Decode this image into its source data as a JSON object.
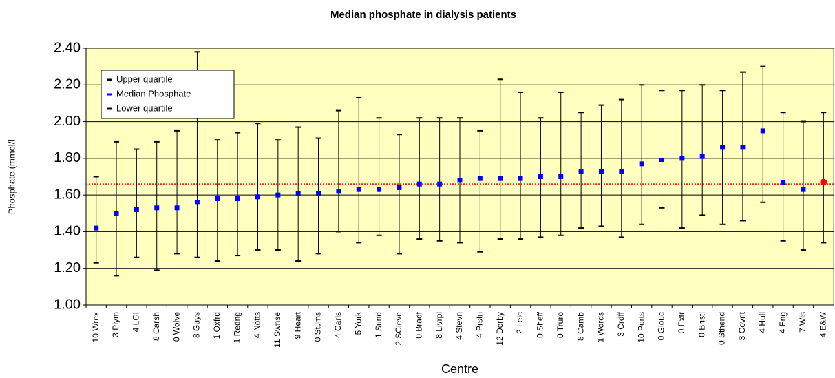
{
  "chart_data": {
    "type": "errorbar",
    "title": "Median phosphate in dialysis patients",
    "x_label": "Centre",
    "y_label": "Phosphate (mmol/l",
    "categories": [
      "10 Wrex",
      "3 Plym",
      "4 LGI",
      "8 Carsh",
      "0 Wolve",
      "8 Guys",
      "1 Oxfrd",
      "1 Redng",
      "4 Notts",
      "11 Swnse",
      "9 Heart",
      "0 StJms",
      "4 Carls",
      "5 York",
      "1 Sund",
      "2 SCleve",
      "0 Bradf",
      "8 Livrpl",
      "4 Stevn",
      "4 Prstn",
      "12 Derby",
      "2 Leic",
      "0 Sheff",
      "0 Truro",
      "8 Camb",
      "1 Words",
      "3 Crdff",
      "10 Ports",
      "0 Glouc",
      "0 Extr",
      "0 Bristl",
      "0 Sthend",
      "3 Covnt",
      "4 Hull",
      "4 Eng",
      "7 Wls",
      "4 E&W"
    ],
    "series": [
      {
        "name": "Upper quartile",
        "color": "#000000",
        "values": [
          1.7,
          1.89,
          1.85,
          1.89,
          1.95,
          2.38,
          1.9,
          1.94,
          1.99,
          1.9,
          1.97,
          1.91,
          2.06,
          2.13,
          2.02,
          1.93,
          2.02,
          2.02,
          2.02,
          1.95,
          2.23,
          2.16,
          2.02,
          2.16,
          2.05,
          2.09,
          2.12,
          2.2,
          2.17,
          2.17,
          2.2,
          2.17,
          2.27,
          2.3,
          2.05,
          2.0,
          2.05
        ]
      },
      {
        "name": "Median Phosphate",
        "color": "#0000ff",
        "values": [
          1.42,
          1.5,
          1.52,
          1.53,
          1.53,
          1.56,
          1.58,
          1.58,
          1.59,
          1.6,
          1.61,
          1.61,
          1.62,
          1.63,
          1.63,
          1.64,
          1.66,
          1.66,
          1.68,
          1.69,
          1.69,
          1.69,
          1.7,
          1.7,
          1.73,
          1.73,
          1.73,
          1.77,
          1.79,
          1.8,
          1.81,
          1.86,
          1.86,
          1.95,
          1.67,
          1.63,
          1.67
        ]
      },
      {
        "name": "Lower quartile",
        "color": "#000000",
        "values": [
          1.23,
          1.16,
          1.26,
          1.19,
          1.28,
          1.26,
          1.24,
          1.27,
          1.3,
          1.3,
          1.24,
          1.28,
          1.4,
          1.34,
          1.38,
          1.28,
          1.36,
          1.35,
          1.34,
          1.29,
          1.36,
          1.36,
          1.37,
          1.38,
          1.42,
          1.43,
          1.37,
          1.44,
          1.53,
          1.42,
          1.49,
          1.44,
          1.46,
          1.56,
          1.35,
          1.3,
          1.34
        ]
      }
    ],
    "highlight_index": 36,
    "highlight_color": "#ff0000",
    "reference_line": 1.66,
    "reference_color": "#ff0000",
    "plot_background": "#ffffc0",
    "ylim": [
      1.0,
      2.4
    ],
    "yticks": [
      {
        "value": 1.0,
        "label": "1.00"
      },
      {
        "value": 1.2,
        "label": "1.20"
      },
      {
        "value": 1.4,
        "label": "1.40"
      },
      {
        "value": 1.6,
        "label": "1.60"
      },
      {
        "value": 1.8,
        "label": "1.80"
      },
      {
        "value": 2.0,
        "label": "2.00"
      },
      {
        "value": 2.2,
        "label": "2.20"
      },
      {
        "value": 2.4,
        "label": "2.40"
      }
    ],
    "grid": true,
    "legend": "upper left"
  }
}
